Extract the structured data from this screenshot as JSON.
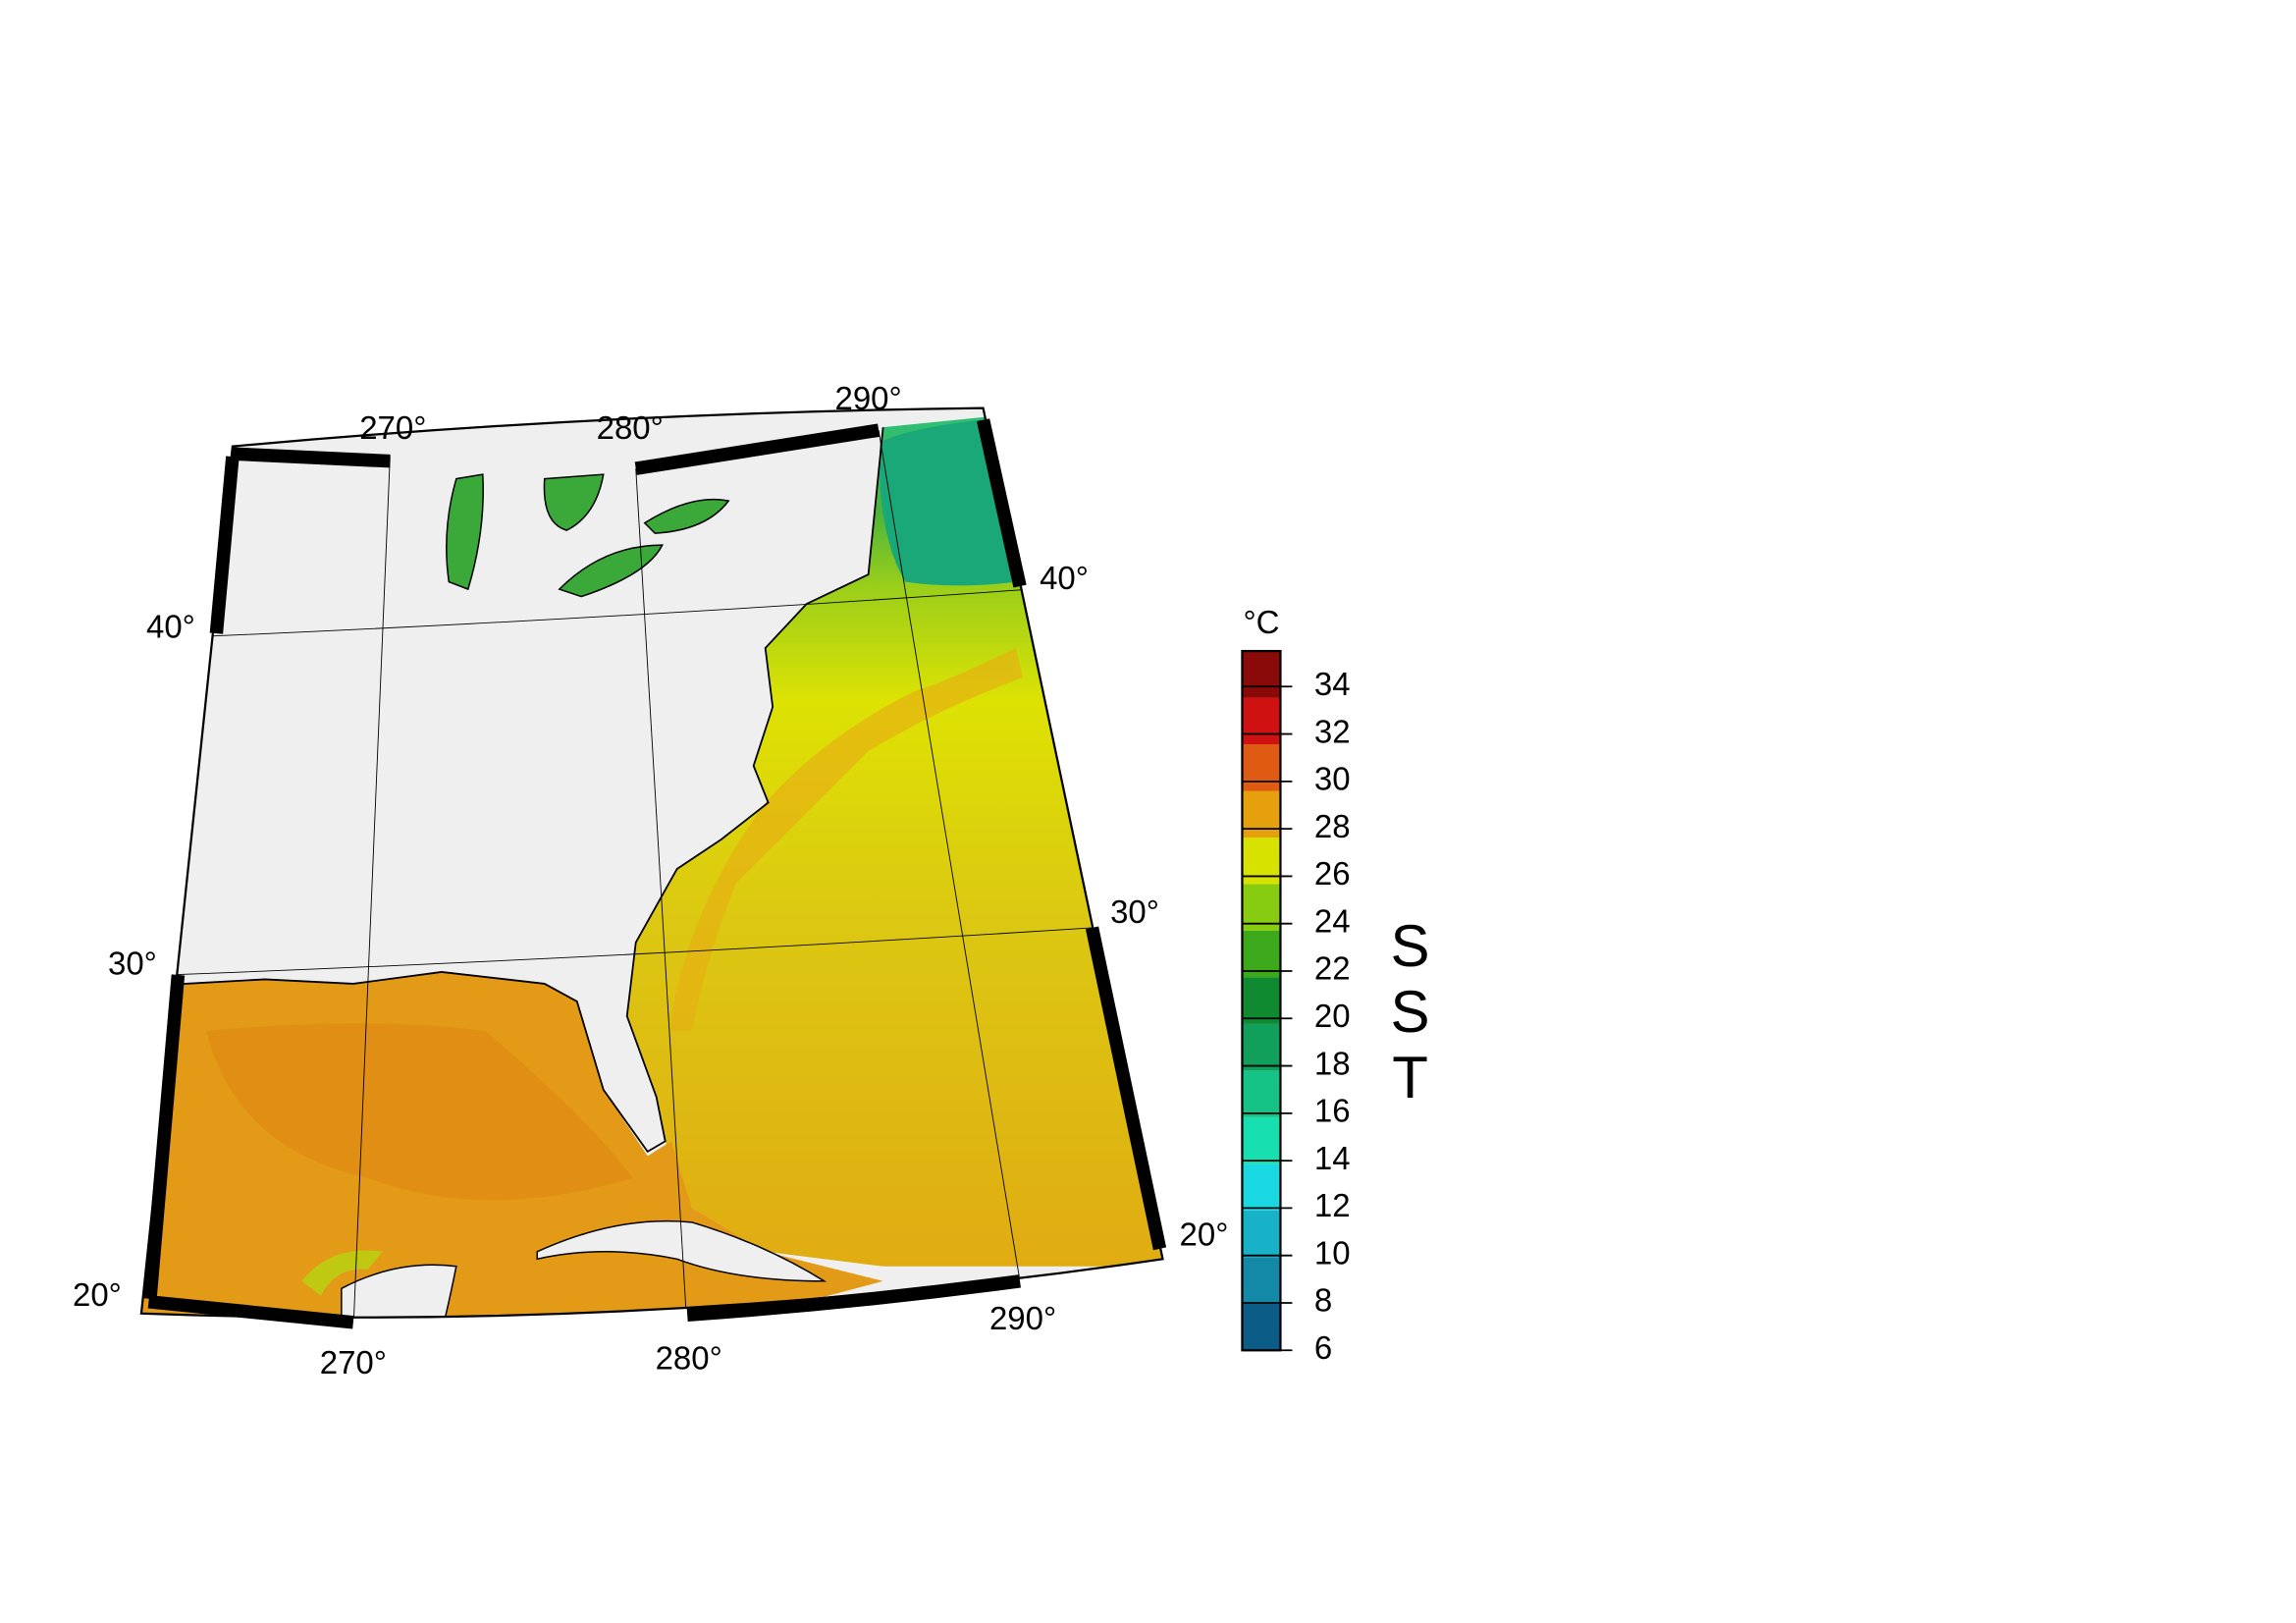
{
  "map": {
    "lon_labels_top": [
      "270°",
      "280°",
      "290°"
    ],
    "lon_labels_bottom": [
      "270°",
      "280°",
      "290°"
    ],
    "lat_labels_left": [
      "40°",
      "30°",
      "20°"
    ],
    "lat_labels_right": [
      "40°",
      "30°",
      "20°"
    ]
  },
  "colorbar": {
    "unit": "°C",
    "label": "SST",
    "clim": [
      6,
      35.5
    ],
    "ticks": [
      6,
      8,
      10,
      12,
      14,
      16,
      18,
      20,
      22,
      24,
      26,
      28,
      30,
      32,
      34
    ],
    "colors": [
      "#0b5d87",
      "#1388a7",
      "#17b2c7",
      "#19d8e2",
      "#18dfb0",
      "#14c385",
      "#11a05c",
      "#0f8a30",
      "#3ba91a",
      "#88cc12",
      "#d8e200",
      "#e6a00e",
      "#df5a12",
      "#cf1111",
      "#8a0a0a"
    ]
  }
}
